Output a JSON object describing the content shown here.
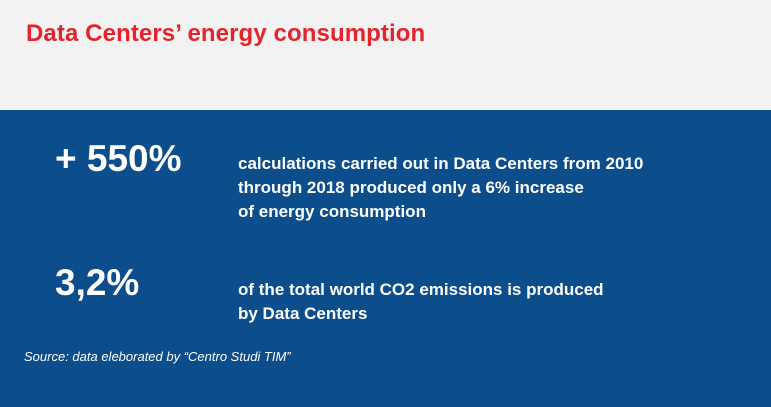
{
  "header": {
    "title": "Data Centers’ energy consumption"
  },
  "stats": [
    {
      "value": "+ 550%",
      "description_lines": [
        "calculations carried out in Data Centers from 2010",
        "through 2018 produced only a 6% increase",
        "of energy consumption"
      ]
    },
    {
      "value": "3,2%",
      "description_lines": [
        "of the total world CO2 emissions is produced",
        "by Data Centers"
      ]
    }
  ],
  "source": "Source: data eleborated by “Centro Studi TIM”",
  "colors": {
    "title_red": "#e4242b",
    "panel_blue": "#0c4d8c",
    "header_bg": "#f2f2f2",
    "text_white": "#ffffff"
  }
}
